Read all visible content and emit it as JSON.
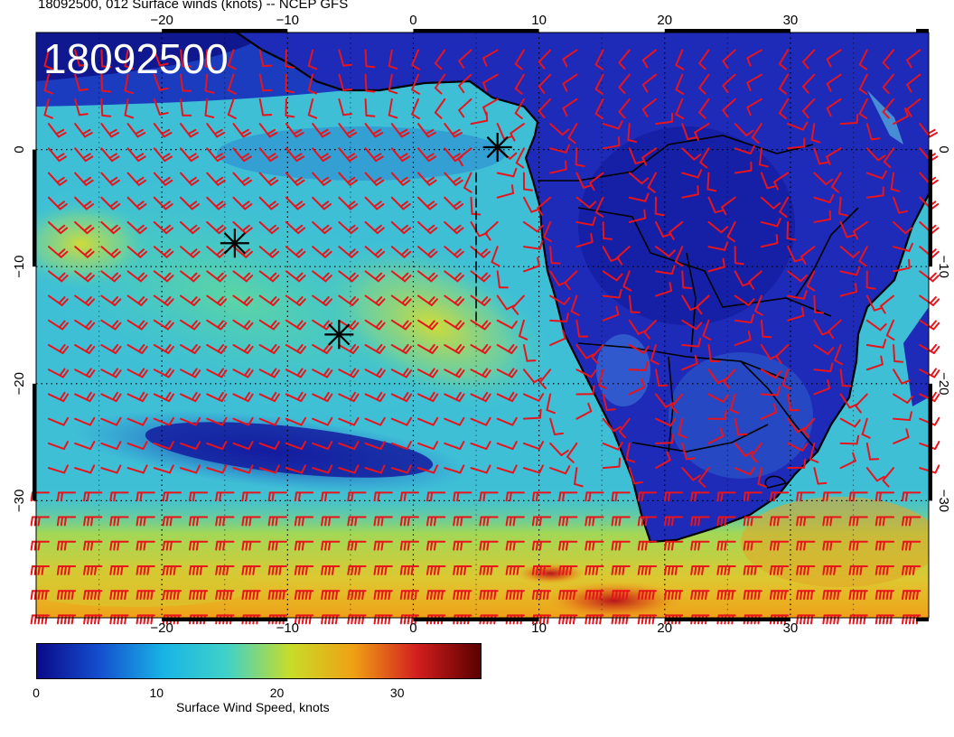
{
  "header": {
    "title": "18092500, 012 Surface winds (knots) -- NCEP GFS"
  },
  "map": {
    "stamp": "18092500",
    "lon_ticks": [
      {
        "value": -20,
        "label": "−20"
      },
      {
        "value": -10,
        "label": "−10"
      },
      {
        "value": 0,
        "label": "0"
      },
      {
        "value": 10,
        "label": "10"
      },
      {
        "value": 20,
        "label": "20"
      },
      {
        "value": 30,
        "label": "30"
      }
    ],
    "lat_ticks": [
      {
        "value": 0,
        "label": "0"
      },
      {
        "value": -10,
        "label": "−10"
      },
      {
        "value": -20,
        "label": "−20"
      },
      {
        "value": -30,
        "label": "−30"
      }
    ],
    "lon_range": [
      -30,
      41
    ],
    "lat_range": [
      -40,
      10
    ],
    "barb_color": "#e8141b",
    "coast_color": "#000000",
    "markers": [
      {
        "name": "asterisk-marker-1",
        "lon": 6.7,
        "lat": 0.2
      },
      {
        "name": "asterisk-marker-2",
        "lon": -14.2,
        "lat": -8.0
      },
      {
        "name": "asterisk-marker-3",
        "lon": -5.9,
        "lat": -15.8
      }
    ]
  },
  "colorbar": {
    "label": "Surface Wind Speed, knots",
    "range": [
      0,
      37
    ],
    "ticks": [
      {
        "value": 0,
        "label": "0"
      },
      {
        "value": 10,
        "label": "10"
      },
      {
        "value": 20,
        "label": "20"
      },
      {
        "value": 30,
        "label": "30"
      }
    ],
    "colors": [
      "#0a0a8a",
      "#1450d0",
      "#19b4e6",
      "#40d2c8",
      "#c8dc28",
      "#f0a014",
      "#d21e1e",
      "#5a0000"
    ]
  }
}
